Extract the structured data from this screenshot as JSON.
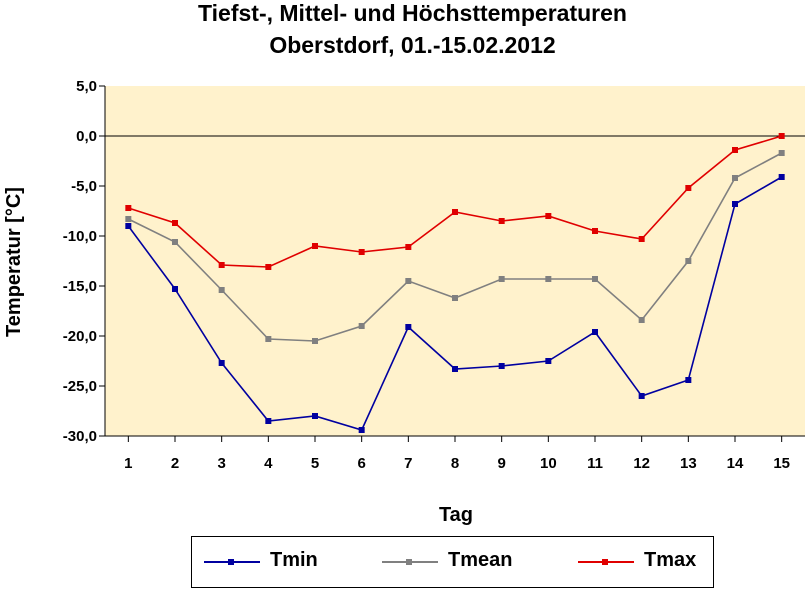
{
  "chart_data": {
    "type": "line",
    "title": "Tiefst-, Mittel- und Höchsttemperaturen",
    "subtitle": "Oberstdorf, 01.-15.02.2012",
    "xlabel": "Tag",
    "ylabel": "Temperatur [°C]",
    "x": [
      1,
      2,
      3,
      4,
      5,
      6,
      7,
      8,
      9,
      10,
      11,
      12,
      13,
      14,
      15
    ],
    "ylim": [
      -30,
      5
    ],
    "yticks": [
      "5,0",
      "0,0",
      "-5,0",
      "-10,0",
      "-15,0",
      "-20,0",
      "-25,0",
      "-30,0"
    ],
    "grid": false,
    "legend_position": "bottom",
    "background_color": "#FFF2CC",
    "series": [
      {
        "name": "Tmin",
        "color": "#0000A0",
        "values": [
          -9.0,
          -15.3,
          -22.7,
          -28.5,
          -28.0,
          -29.4,
          -19.1,
          -23.3,
          -23.0,
          -22.5,
          -19.6,
          -26.0,
          -24.4,
          -6.8,
          -4.1
        ]
      },
      {
        "name": "Tmean",
        "color": "#808080",
        "values": [
          -8.3,
          -10.6,
          -15.4,
          -20.3,
          -20.5,
          -19.0,
          -14.5,
          -16.2,
          -14.3,
          -14.3,
          -14.3,
          -18.4,
          -12.5,
          -4.2,
          -1.7
        ]
      },
      {
        "name": "Tmax",
        "color": "#E00000",
        "values": [
          -7.2,
          -8.7,
          -12.9,
          -13.1,
          -11.0,
          -11.6,
          -11.1,
          -7.6,
          -8.5,
          -8.0,
          -9.5,
          -10.3,
          -5.2,
          -1.4,
          0.0
        ]
      }
    ]
  }
}
